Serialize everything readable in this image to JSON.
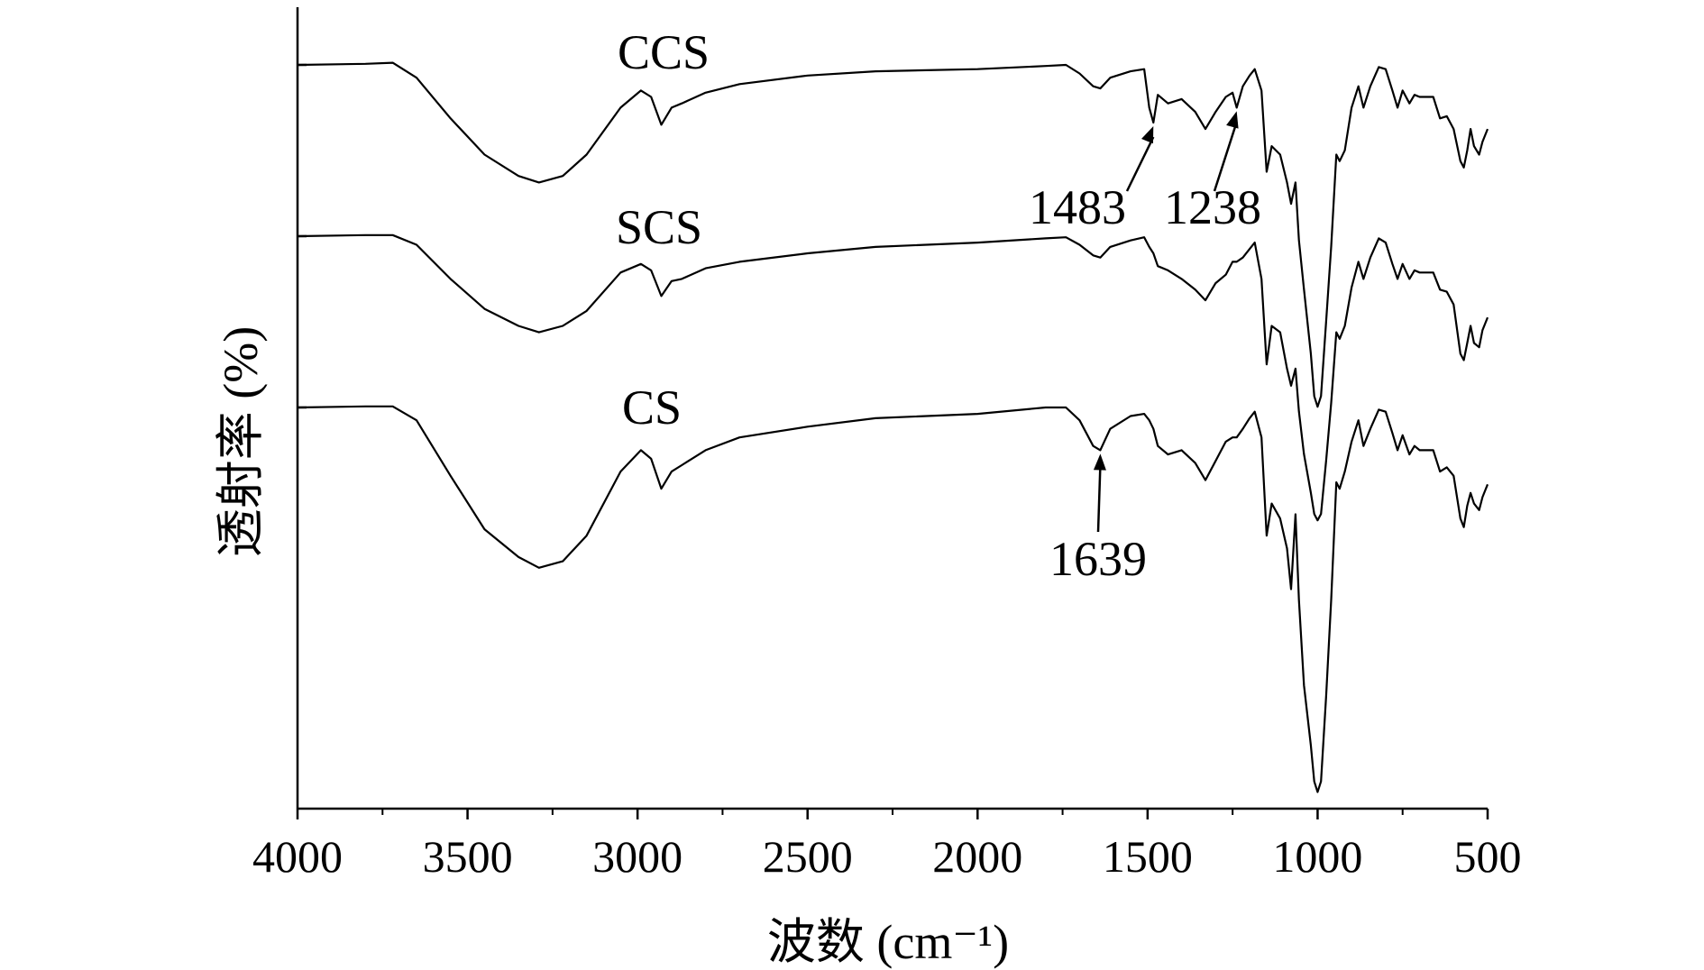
{
  "chart_data": {
    "type": "line",
    "title": "",
    "xlabel": "波数 (cm⁻¹)",
    "ylabel": "透射率 (%)",
    "xlim": [
      4000,
      500
    ],
    "x_reversed": true,
    "xticks": [
      4000,
      3500,
      3000,
      2500,
      2000,
      1500,
      1000,
      500
    ],
    "yticks_shown": false,
    "grid": false,
    "legend": "none",
    "series": [
      {
        "name": "CCS",
        "offset": 1.0,
        "points": [
          [
            4000,
            0
          ],
          [
            3800,
            0.005
          ],
          [
            3720,
            0.01
          ],
          [
            3650,
            -0.06
          ],
          [
            3550,
            -0.25
          ],
          [
            3450,
            -0.42
          ],
          [
            3350,
            -0.52
          ],
          [
            3290,
            -0.55
          ],
          [
            3220,
            -0.52
          ],
          [
            3150,
            -0.42
          ],
          [
            3050,
            -0.2
          ],
          [
            2990,
            -0.12
          ],
          [
            2960,
            -0.15
          ],
          [
            2930,
            -0.28
          ],
          [
            2900,
            -0.2
          ],
          [
            2870,
            -0.18
          ],
          [
            2800,
            -0.13
          ],
          [
            2700,
            -0.09
          ],
          [
            2500,
            -0.05
          ],
          [
            2300,
            -0.03
          ],
          [
            2000,
            -0.02
          ],
          [
            1800,
            -0.005
          ],
          [
            1740,
            0
          ],
          [
            1700,
            -0.04
          ],
          [
            1660,
            -0.1
          ],
          [
            1639,
            -0.11
          ],
          [
            1610,
            -0.06
          ],
          [
            1550,
            -0.03
          ],
          [
            1510,
            -0.02
          ],
          [
            1495,
            -0.2
          ],
          [
            1483,
            -0.27
          ],
          [
            1470,
            -0.14
          ],
          [
            1440,
            -0.18
          ],
          [
            1400,
            -0.16
          ],
          [
            1360,
            -0.22
          ],
          [
            1330,
            -0.3
          ],
          [
            1300,
            -0.22
          ],
          [
            1270,
            -0.15
          ],
          [
            1250,
            -0.13
          ],
          [
            1238,
            -0.2
          ],
          [
            1220,
            -0.1
          ],
          [
            1200,
            -0.05
          ],
          [
            1185,
            -0.02
          ],
          [
            1165,
            -0.12
          ],
          [
            1150,
            -0.5
          ],
          [
            1135,
            -0.38
          ],
          [
            1110,
            -0.42
          ],
          [
            1090,
            -0.55
          ],
          [
            1078,
            -0.65
          ],
          [
            1065,
            -0.55
          ],
          [
            1055,
            -0.82
          ],
          [
            1040,
            -1.05
          ],
          [
            1020,
            -1.35
          ],
          [
            1010,
            -1.55
          ],
          [
            1000,
            -1.6
          ],
          [
            990,
            -1.55
          ],
          [
            975,
            -1.2
          ],
          [
            960,
            -0.85
          ],
          [
            945,
            -0.42
          ],
          [
            935,
            -0.45
          ],
          [
            920,
            -0.4
          ],
          [
            900,
            -0.2
          ],
          [
            880,
            -0.1
          ],
          [
            865,
            -0.2
          ],
          [
            845,
            -0.1
          ],
          [
            820,
            -0.01
          ],
          [
            800,
            -0.02
          ],
          [
            780,
            -0.12
          ],
          [
            765,
            -0.2
          ],
          [
            750,
            -0.12
          ],
          [
            730,
            -0.18
          ],
          [
            715,
            -0.14
          ],
          [
            700,
            -0.15
          ],
          [
            660,
            -0.15
          ],
          [
            640,
            -0.25
          ],
          [
            620,
            -0.24
          ],
          [
            600,
            -0.3
          ],
          [
            580,
            -0.45
          ],
          [
            570,
            -0.48
          ],
          [
            560,
            -0.4
          ],
          [
            550,
            -0.3
          ],
          [
            540,
            -0.38
          ],
          [
            525,
            -0.42
          ],
          [
            515,
            -0.36
          ],
          [
            500,
            -0.3
          ]
        ]
      },
      {
        "name": "SCS",
        "offset": 0.0,
        "points": [
          [
            4000,
            0
          ],
          [
            3800,
            0.005
          ],
          [
            3720,
            0.005
          ],
          [
            3650,
            -0.04
          ],
          [
            3550,
            -0.2
          ],
          [
            3450,
            -0.34
          ],
          [
            3350,
            -0.42
          ],
          [
            3290,
            -0.45
          ],
          [
            3220,
            -0.42
          ],
          [
            3150,
            -0.35
          ],
          [
            3050,
            -0.17
          ],
          [
            2990,
            -0.13
          ],
          [
            2960,
            -0.16
          ],
          [
            2930,
            -0.28
          ],
          [
            2900,
            -0.21
          ],
          [
            2870,
            -0.2
          ],
          [
            2800,
            -0.15
          ],
          [
            2700,
            -0.12
          ],
          [
            2500,
            -0.08
          ],
          [
            2300,
            -0.05
          ],
          [
            2000,
            -0.03
          ],
          [
            1800,
            -0.01
          ],
          [
            1740,
            -0.005
          ],
          [
            1700,
            -0.04
          ],
          [
            1660,
            -0.09
          ],
          [
            1639,
            -0.1
          ],
          [
            1610,
            -0.05
          ],
          [
            1550,
            -0.02
          ],
          [
            1510,
            -0.005
          ],
          [
            1495,
            -0.05
          ],
          [
            1483,
            -0.08
          ],
          [
            1470,
            -0.14
          ],
          [
            1440,
            -0.16
          ],
          [
            1400,
            -0.2
          ],
          [
            1360,
            -0.25
          ],
          [
            1330,
            -0.3
          ],
          [
            1300,
            -0.22
          ],
          [
            1270,
            -0.18
          ],
          [
            1250,
            -0.12
          ],
          [
            1238,
            -0.12
          ],
          [
            1220,
            -0.1
          ],
          [
            1200,
            -0.06
          ],
          [
            1185,
            -0.03
          ],
          [
            1165,
            -0.2
          ],
          [
            1150,
            -0.6
          ],
          [
            1135,
            -0.42
          ],
          [
            1110,
            -0.45
          ],
          [
            1090,
            -0.62
          ],
          [
            1078,
            -0.7
          ],
          [
            1065,
            -0.62
          ],
          [
            1055,
            -0.82
          ],
          [
            1040,
            -1.02
          ],
          [
            1020,
            -1.2
          ],
          [
            1010,
            -1.3
          ],
          [
            1000,
            -1.33
          ],
          [
            990,
            -1.3
          ],
          [
            975,
            -1.05
          ],
          [
            960,
            -0.78
          ],
          [
            945,
            -0.45
          ],
          [
            935,
            -0.48
          ],
          [
            920,
            -0.42
          ],
          [
            900,
            -0.24
          ],
          [
            880,
            -0.12
          ],
          [
            865,
            -0.2
          ],
          [
            845,
            -0.1
          ],
          [
            820,
            -0.01
          ],
          [
            800,
            -0.03
          ],
          [
            780,
            -0.13
          ],
          [
            765,
            -0.2
          ],
          [
            750,
            -0.13
          ],
          [
            730,
            -0.2
          ],
          [
            715,
            -0.16
          ],
          [
            700,
            -0.17
          ],
          [
            660,
            -0.17
          ],
          [
            640,
            -0.25
          ],
          [
            620,
            -0.26
          ],
          [
            600,
            -0.32
          ],
          [
            580,
            -0.55
          ],
          [
            570,
            -0.58
          ],
          [
            560,
            -0.5
          ],
          [
            550,
            -0.42
          ],
          [
            540,
            -0.5
          ],
          [
            525,
            -0.52
          ],
          [
            515,
            -0.44
          ],
          [
            500,
            -0.38
          ]
        ]
      },
      {
        "name": "CS",
        "offset": -1.0,
        "points": [
          [
            4000,
            0
          ],
          [
            3800,
            0.005
          ],
          [
            3720,
            0.005
          ],
          [
            3650,
            -0.06
          ],
          [
            3550,
            -0.32
          ],
          [
            3450,
            -0.57
          ],
          [
            3350,
            -0.7
          ],
          [
            3290,
            -0.75
          ],
          [
            3220,
            -0.72
          ],
          [
            3150,
            -0.6
          ],
          [
            3050,
            -0.3
          ],
          [
            2990,
            -0.2
          ],
          [
            2960,
            -0.24
          ],
          [
            2930,
            -0.38
          ],
          [
            2900,
            -0.3
          ],
          [
            2870,
            -0.27
          ],
          [
            2800,
            -0.2
          ],
          [
            2700,
            -0.14
          ],
          [
            2500,
            -0.09
          ],
          [
            2300,
            -0.05
          ],
          [
            2000,
            -0.03
          ],
          [
            1800,
            0
          ],
          [
            1740,
            0
          ],
          [
            1700,
            -0.06
          ],
          [
            1660,
            -0.18
          ],
          [
            1639,
            -0.2
          ],
          [
            1610,
            -0.1
          ],
          [
            1550,
            -0.04
          ],
          [
            1510,
            -0.03
          ],
          [
            1495,
            -0.06
          ],
          [
            1483,
            -0.1
          ],
          [
            1470,
            -0.18
          ],
          [
            1440,
            -0.22
          ],
          [
            1400,
            -0.2
          ],
          [
            1360,
            -0.26
          ],
          [
            1330,
            -0.34
          ],
          [
            1300,
            -0.25
          ],
          [
            1270,
            -0.16
          ],
          [
            1250,
            -0.14
          ],
          [
            1238,
            -0.14
          ],
          [
            1220,
            -0.1
          ],
          [
            1200,
            -0.05
          ],
          [
            1185,
            -0.02
          ],
          [
            1165,
            -0.14
          ],
          [
            1150,
            -0.6
          ],
          [
            1135,
            -0.45
          ],
          [
            1110,
            -0.52
          ],
          [
            1090,
            -0.66
          ],
          [
            1078,
            -0.85
          ],
          [
            1065,
            -0.5
          ],
          [
            1055,
            -0.9
          ],
          [
            1040,
            -1.3
          ],
          [
            1020,
            -1.58
          ],
          [
            1010,
            -1.75
          ],
          [
            1000,
            -1.8
          ],
          [
            990,
            -1.75
          ],
          [
            975,
            -1.35
          ],
          [
            960,
            -0.9
          ],
          [
            945,
            -0.35
          ],
          [
            935,
            -0.38
          ],
          [
            920,
            -0.3
          ],
          [
            900,
            -0.16
          ],
          [
            880,
            -0.06
          ],
          [
            865,
            -0.18
          ],
          [
            845,
            -0.1
          ],
          [
            820,
            -0.01
          ],
          [
            800,
            -0.02
          ],
          [
            780,
            -0.12
          ],
          [
            765,
            -0.2
          ],
          [
            750,
            -0.13
          ],
          [
            730,
            -0.22
          ],
          [
            715,
            -0.18
          ],
          [
            700,
            -0.2
          ],
          [
            660,
            -0.2
          ],
          [
            640,
            -0.3
          ],
          [
            620,
            -0.28
          ],
          [
            600,
            -0.32
          ],
          [
            580,
            -0.52
          ],
          [
            570,
            -0.56
          ],
          [
            560,
            -0.46
          ],
          [
            550,
            -0.4
          ],
          [
            540,
            -0.45
          ],
          [
            525,
            -0.48
          ],
          [
            515,
            -0.42
          ],
          [
            500,
            -0.36
          ]
        ]
      }
    ],
    "annotations": [
      {
        "text": "1483",
        "x": 1483,
        "series": "CCS"
      },
      {
        "text": "1238",
        "x": 1238,
        "series": "CCS"
      },
      {
        "text": "1639",
        "x": 1639,
        "series": "CS"
      }
    ]
  }
}
